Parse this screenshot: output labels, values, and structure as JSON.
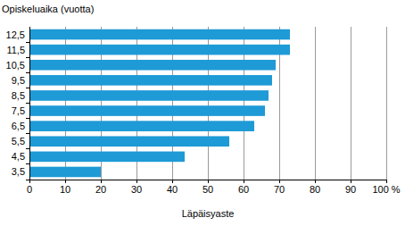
{
  "chart_data": {
    "type": "bar",
    "orientation": "horizontal",
    "y_label": "Opiskeluaika (vuotta)",
    "x_label": "Läpäisyaste",
    "categories": [
      "12,5",
      "11,5",
      "10,5",
      "9,5",
      "8,5",
      "7,5",
      "6,5",
      "5,5",
      "4,5",
      "3,5"
    ],
    "values": [
      73,
      73,
      69,
      68,
      67,
      66,
      63,
      56,
      43.5,
      20
    ],
    "color": "#1e9ad6",
    "xlim": [
      0,
      100
    ],
    "xticks": [
      0,
      10,
      20,
      30,
      40,
      50,
      60,
      70,
      80,
      90,
      {
        "value": 100,
        "label": "100 %"
      }
    ],
    "grid": true
  }
}
